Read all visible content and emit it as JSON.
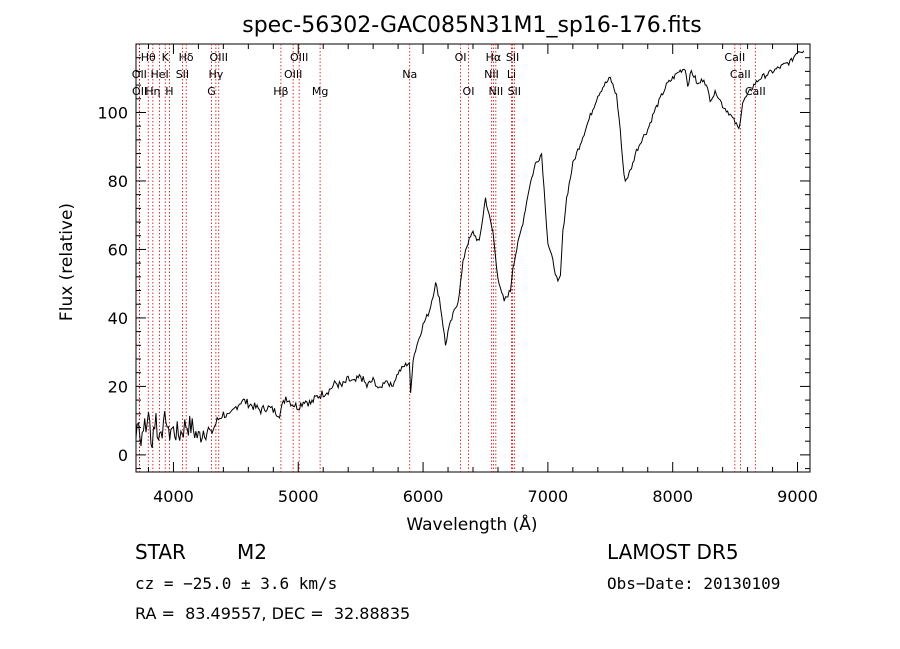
{
  "chart_data": {
    "type": "line",
    "title": "spec-56302-GAC085N31M1_sp16-176.fits",
    "xlabel": "Wavelength (Å)",
    "ylabel": "Flux (relative)",
    "xlim": [
      3700,
      9100
    ],
    "ylim": [
      -5,
      120
    ],
    "xticks": [
      4000,
      5000,
      6000,
      7000,
      8000,
      9000
    ],
    "yticks": [
      0,
      20,
      40,
      60,
      80,
      100
    ],
    "grid": false,
    "line_color": "#000000",
    "marker_color": "#cc0000",
    "series": [
      {
        "x": [
          3700,
          3720,
          3740,
          3760,
          3780,
          3800,
          3820,
          3840,
          3860,
          3880,
          3900,
          3920,
          3940,
          3960,
          3980,
          4000,
          4050,
          4100,
          4150,
          4200,
          4250,
          4300,
          4350,
          4400,
          4450,
          4500,
          4550,
          4600,
          4650,
          4700,
          4750,
          4800,
          4850,
          4900,
          4950,
          5000,
          5050,
          5100,
          5150,
          5200,
          5250,
          5300,
          5350,
          5400,
          5450,
          5500,
          5550,
          5600,
          5650,
          5700,
          5750,
          5800,
          5850,
          5890,
          5900,
          5920,
          5950,
          6000,
          6050,
          6100,
          6130,
          6160,
          6180,
          6200,
          6250,
          6280,
          6300,
          6320,
          6340,
          6360,
          6400,
          6450,
          6500,
          6540,
          6560,
          6580,
          6600,
          6620,
          6650,
          6700,
          6720,
          6750,
          6800,
          6850,
          6900,
          6950,
          7000,
          7050,
          7080,
          7100,
          7120,
          7150,
          7200,
          7250,
          7300,
          7350,
          7400,
          7450,
          7500,
          7550,
          7580,
          7600,
          7620,
          7650,
          7680,
          7700,
          7750,
          7800,
          7850,
          7900,
          7950,
          8000,
          8050,
          8100,
          8120,
          8150,
          8180,
          8200,
          8250,
          8300,
          8350,
          8400,
          8450,
          8500,
          8530,
          8560,
          8600,
          8650,
          8700,
          8750,
          8800,
          8850,
          8900,
          8950,
          9000,
          9050
        ],
        "y": [
          5,
          12,
          3,
          10,
          6,
          14,
          2,
          8,
          11,
          4,
          9,
          7,
          12,
          5,
          8,
          7,
          6,
          9,
          8,
          5,
          8,
          6,
          10,
          12,
          11,
          14,
          16,
          15,
          14,
          13,
          14,
          13,
          12,
          17,
          15,
          14,
          16,
          15,
          17,
          18,
          19,
          21,
          20,
          22,
          21,
          23,
          20,
          22,
          19,
          22,
          20,
          24,
          26,
          27,
          18,
          28,
          32,
          38,
          42,
          50,
          46,
          38,
          32,
          36,
          42,
          45,
          50,
          56,
          60,
          62,
          65,
          62,
          75,
          68,
          65,
          58,
          52,
          48,
          45,
          48,
          55,
          60,
          68,
          78,
          85,
          88,
          62,
          55,
          50,
          52,
          65,
          75,
          85,
          90,
          95,
          100,
          105,
          108,
          110,
          105,
          95,
          85,
          80,
          82,
          85,
          88,
          92,
          95,
          100,
          104,
          108,
          110,
          112,
          113,
          108,
          112,
          110,
          108,
          110,
          104,
          106,
          102,
          100,
          97,
          95,
          103,
          105,
          108,
          110,
          111,
          112,
          113,
          114,
          115,
          118,
          118
        ]
      }
    ],
    "lines": [
      {
        "label": "Hθ",
        "x": 3798,
        "row": 1
      },
      {
        "label": "K",
        "x": 3934,
        "row": 1
      },
      {
        "label": "Hδ",
        "x": 4102,
        "row": 1
      },
      {
        "label": "OIII",
        "x": 4363,
        "row": 1
      },
      {
        "label": "OIII",
        "x": 5007,
        "row": 1
      },
      {
        "label": "OI",
        "x": 6300,
        "row": 1
      },
      {
        "label": "Hα",
        "x": 6563,
        "row": 1
      },
      {
        "label": "SII",
        "x": 6717,
        "row": 1
      },
      {
        "label": "CaII",
        "x": 8498,
        "row": 1
      },
      {
        "label": "OII",
        "x": 3727,
        "row": 2
      },
      {
        "label": "HeI",
        "x": 3889,
        "row": 2
      },
      {
        "label": "SII",
        "x": 4072,
        "row": 2
      },
      {
        "label": "Hγ",
        "x": 4340,
        "row": 2
      },
      {
        "label": "OIII",
        "x": 4959,
        "row": 2
      },
      {
        "label": "Na",
        "x": 5893,
        "row": 2
      },
      {
        "label": "NII",
        "x": 6548,
        "row": 2
      },
      {
        "label": "Li",
        "x": 6708,
        "row": 2
      },
      {
        "label": "CaII",
        "x": 8542,
        "row": 2
      },
      {
        "label": "OII",
        "x": 3729,
        "row": 3
      },
      {
        "label": "Hη",
        "x": 3835,
        "row": 3
      },
      {
        "label": "H",
        "x": 3968,
        "row": 3
      },
      {
        "label": "G",
        "x": 4305,
        "row": 3
      },
      {
        "label": "Hβ",
        "x": 4861,
        "row": 3
      },
      {
        "label": "Mg",
        "x": 5175,
        "row": 3
      },
      {
        "label": "OI",
        "x": 6364,
        "row": 3
      },
      {
        "label": "NII",
        "x": 6583,
        "row": 3
      },
      {
        "label": "SII",
        "x": 6731,
        "row": 3
      },
      {
        "label": "CaII",
        "x": 8662,
        "row": 3
      }
    ]
  },
  "info": {
    "class": "STAR",
    "subclass": "M2",
    "survey": "LAMOST DR5",
    "cz": "cz = −25.0 ± 3.6 km/s",
    "obs_date": "Obs−Date: 20130109",
    "coords": "RA =  83.49557, DEC =  32.88835"
  }
}
